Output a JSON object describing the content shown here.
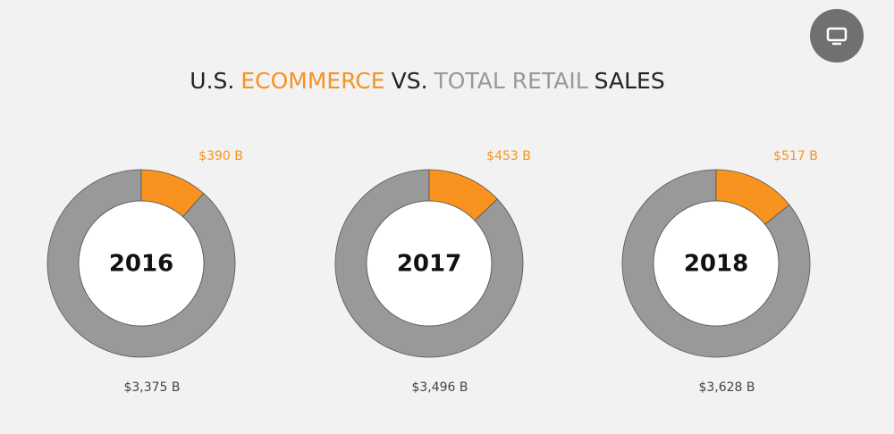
{
  "title_parts": [
    {
      "text": "U.S.",
      "color": "#222222"
    },
    {
      "text": "ECOMMERCE",
      "color": "#f7931e"
    },
    {
      "text": "VS.",
      "color": "#222222"
    },
    {
      "text": "TOTAL RETAIL",
      "color": "#999999"
    },
    {
      "text": "SALES",
      "color": "#222222"
    }
  ],
  "chart_data": [
    {
      "type": "donut",
      "center_label": "2016",
      "values": [
        390,
        3375
      ],
      "value_labels": [
        "$390 B",
        "$3,375 B"
      ],
      "colors": [
        "#f7931e",
        "#999999"
      ]
    },
    {
      "type": "donut",
      "center_label": "2017",
      "values": [
        453,
        3496
      ],
      "value_labels": [
        "$453 B",
        "$3,496 B"
      ],
      "colors": [
        "#f7931e",
        "#999999"
      ]
    },
    {
      "type": "donut",
      "center_label": "2018",
      "values": [
        517,
        3628
      ],
      "value_labels": [
        "$517 B",
        "$3,628 B"
      ],
      "colors": [
        "#f7931e",
        "#999999"
      ]
    }
  ]
}
